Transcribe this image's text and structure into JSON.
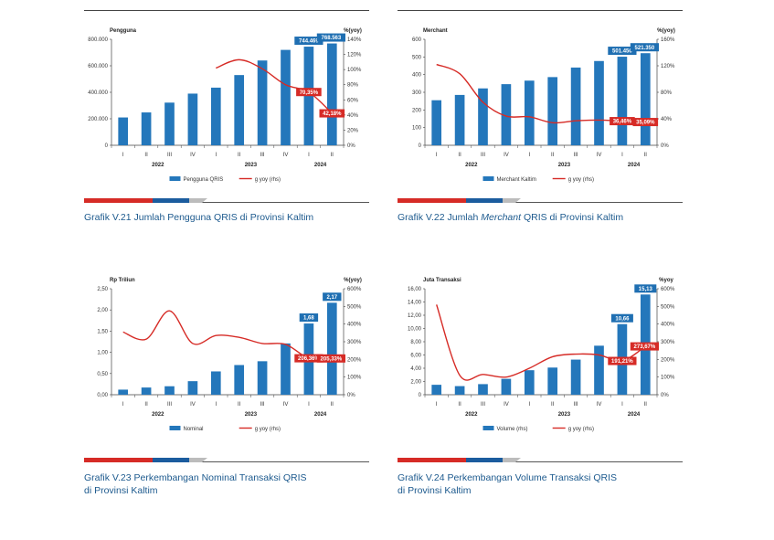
{
  "chart_data": [
    {
      "type": "bar",
      "title": "Grafik V.21 Jumlah Pengguna QRIS di Provinsi Kaltim",
      "title_parts": [
        "Grafik V.21 Jumlah Pengguna QRIS di Provinsi Kaltim"
      ],
      "ylabel_left": "Pengguna",
      "ylabel_right": "%(yoy)",
      "categories": [
        "I",
        "II",
        "III",
        "IV",
        "I",
        "II",
        "III",
        "IV",
        "I",
        "II"
      ],
      "year_groups": [
        {
          "label": "2022",
          "start": 0,
          "end": 3
        },
        {
          "label": "2023",
          "start": 4,
          "end": 7
        },
        {
          "label": "2024",
          "start": 8,
          "end": 9
        }
      ],
      "left_ticks": [
        "0",
        "200.000",
        "400.000",
        "600.000",
        "800.000"
      ],
      "left_range": [
        0,
        800000
      ],
      "right_ticks": [
        "0%",
        "20%",
        "40%",
        "60%",
        "80%",
        "100%",
        "120%",
        "140%"
      ],
      "right_range": [
        0,
        140
      ],
      "bars": {
        "name": "Pengguna QRIS",
        "values": [
          210000,
          248000,
          322000,
          390000,
          435000,
          530000,
          640000,
          720000,
          744469,
          768563
        ]
      },
      "line": {
        "name": "g yoy (rhs)",
        "values": [
          null,
          null,
          null,
          null,
          102,
          113,
          101,
          80,
          70.35,
          42.18
        ]
      },
      "bar_labels": [
        {
          "index": 8,
          "text": "744.469"
        },
        {
          "index": 9,
          "text": "768.563"
        }
      ],
      "line_labels": [
        {
          "index": 8,
          "text": "70,35%"
        },
        {
          "index": 9,
          "text": "42,18%"
        }
      ]
    },
    {
      "type": "bar",
      "title": "Grafik V.22 Jumlah Merchant QRIS di Provinsi Kaltim",
      "title_parts": [
        "Grafik V.22 Jumlah ",
        "Merchant",
        " QRIS di Provinsi Kaltim"
      ],
      "ylabel_left": "Merchant",
      "ylabel_right": "%(yoy)",
      "categories": [
        "I",
        "II",
        "III",
        "IV",
        "I",
        "II",
        "III",
        "IV",
        "I",
        "II"
      ],
      "year_groups": [
        {
          "label": "2022",
          "start": 0,
          "end": 3
        },
        {
          "label": "2023",
          "start": 4,
          "end": 7
        },
        {
          "label": "2024",
          "start": 8,
          "end": 9
        }
      ],
      "left_ticks": [
        "0",
        "100",
        "200",
        "300",
        "400",
        "500",
        "600"
      ],
      "left_range": [
        0,
        600
      ],
      "right_ticks": [
        "0%",
        "40%",
        "80%",
        "120%",
        "160%"
      ],
      "right_range": [
        0,
        160
      ],
      "bars": {
        "name": "Merchant Kaltim",
        "values": [
          255,
          285,
          322,
          346,
          366,
          386,
          440,
          477,
          501.456,
          521.35
        ]
      },
      "line": {
        "name": "g yoy (rhs)",
        "values": [
          122,
          108,
          65,
          44,
          43,
          34,
          37,
          38,
          36.46,
          35.09
        ]
      },
      "bar_labels": [
        {
          "index": 8,
          "text": "501.456"
        },
        {
          "index": 9,
          "text": "521.350"
        }
      ],
      "line_labels": [
        {
          "index": 8,
          "text": "36,46%"
        },
        {
          "index": 9,
          "text": "35,09%"
        }
      ]
    },
    {
      "type": "bar",
      "title": "Grafik V.23 Perkembangan Nominal Transaksi QRIS di Provinsi Kaltim",
      "title_parts": [
        "Grafik V.23 Perkembangan Nominal Transaksi QRIS",
        "di Provinsi Kaltim"
      ],
      "ylabel_left": "Rp Triliun",
      "ylabel_right": "%(yoy)",
      "categories": [
        "I",
        "II",
        "III",
        "IV",
        "I",
        "II",
        "III",
        "IV",
        "I",
        "II"
      ],
      "year_groups": [
        {
          "label": "2022",
          "start": 0,
          "end": 3
        },
        {
          "label": "2023",
          "start": 4,
          "end": 7
        },
        {
          "label": "2024",
          "start": 8,
          "end": 9
        }
      ],
      "left_ticks": [
        "0,00",
        "0,50",
        "1,00",
        "1,50",
        "2,00",
        "2,50"
      ],
      "left_range": [
        0,
        2.5
      ],
      "right_ticks": [
        "0%",
        "100%",
        "200%",
        "300%",
        "400%",
        "500%",
        "600%"
      ],
      "right_range": [
        0,
        600
      ],
      "bars": {
        "name": "Nominal",
        "values": [
          0.12,
          0.17,
          0.2,
          0.32,
          0.55,
          0.7,
          0.79,
          1.21,
          1.68,
          2.17
        ]
      },
      "line": {
        "name": "g yoy (rhs)",
        "values": [
          355,
          315,
          475,
          290,
          335,
          325,
          290,
          285,
          206.36,
          205.33
        ]
      },
      "bar_labels": [
        {
          "index": 8,
          "text": "1,68"
        },
        {
          "index": 9,
          "text": "2,17"
        }
      ],
      "line_labels": [
        {
          "index": 8,
          "text": "206,36%"
        },
        {
          "index": 9,
          "text": "205,33%"
        }
      ]
    },
    {
      "type": "bar",
      "title": "Grafik V.24 Perkembangan Volume Transaksi QRIS di Provinsi Kaltim",
      "title_parts": [
        "Grafik V.24 Perkembangan Volume Transaksi QRIS",
        "di Provinsi Kaltim"
      ],
      "ylabel_left": "Juta Transaksi",
      "ylabel_right": "%yoy",
      "categories": [
        "I",
        "II",
        "III",
        "IV",
        "I",
        "II",
        "III",
        "IV",
        "I",
        "II"
      ],
      "year_groups": [
        {
          "label": "2022",
          "start": 0,
          "end": 3
        },
        {
          "label": "2023",
          "start": 4,
          "end": 7
        },
        {
          "label": "2024",
          "start": 8,
          "end": 9
        }
      ],
      "left_ticks": [
        "0",
        "2,00",
        "4,00",
        "6,00",
        "8,00",
        "10,00",
        "12,00",
        "14,00",
        "16,00"
      ],
      "left_range": [
        0,
        16
      ],
      "right_ticks": [
        "0%",
        "100%",
        "200%",
        "300%",
        "400%",
        "500%",
        "600%"
      ],
      "right_range": [
        0,
        600
      ],
      "bars": {
        "name": "Volume (rhs)",
        "values": [
          1.5,
          1.3,
          1.6,
          2.4,
          3.7,
          4.1,
          5.3,
          7.4,
          10.66,
          15.13
        ]
      },
      "line": {
        "name": "g yoy (rhs)",
        "values": [
          510,
          110,
          115,
          100,
          150,
          215,
          230,
          225,
          191.21,
          273.67
        ]
      },
      "bar_labels": [
        {
          "index": 8,
          "text": "10,66"
        },
        {
          "index": 9,
          "text": "15,13"
        }
      ],
      "line_labels": [
        {
          "index": 8,
          "text": "191,21%"
        },
        {
          "index": 9,
          "text": "273,67%"
        }
      ]
    }
  ],
  "colors": {
    "bar": "#2477bb",
    "line": "#d62b26",
    "label_bar": "#1f6fb2",
    "label_line": "#d62b26",
    "caption": "#1d5a8e"
  }
}
